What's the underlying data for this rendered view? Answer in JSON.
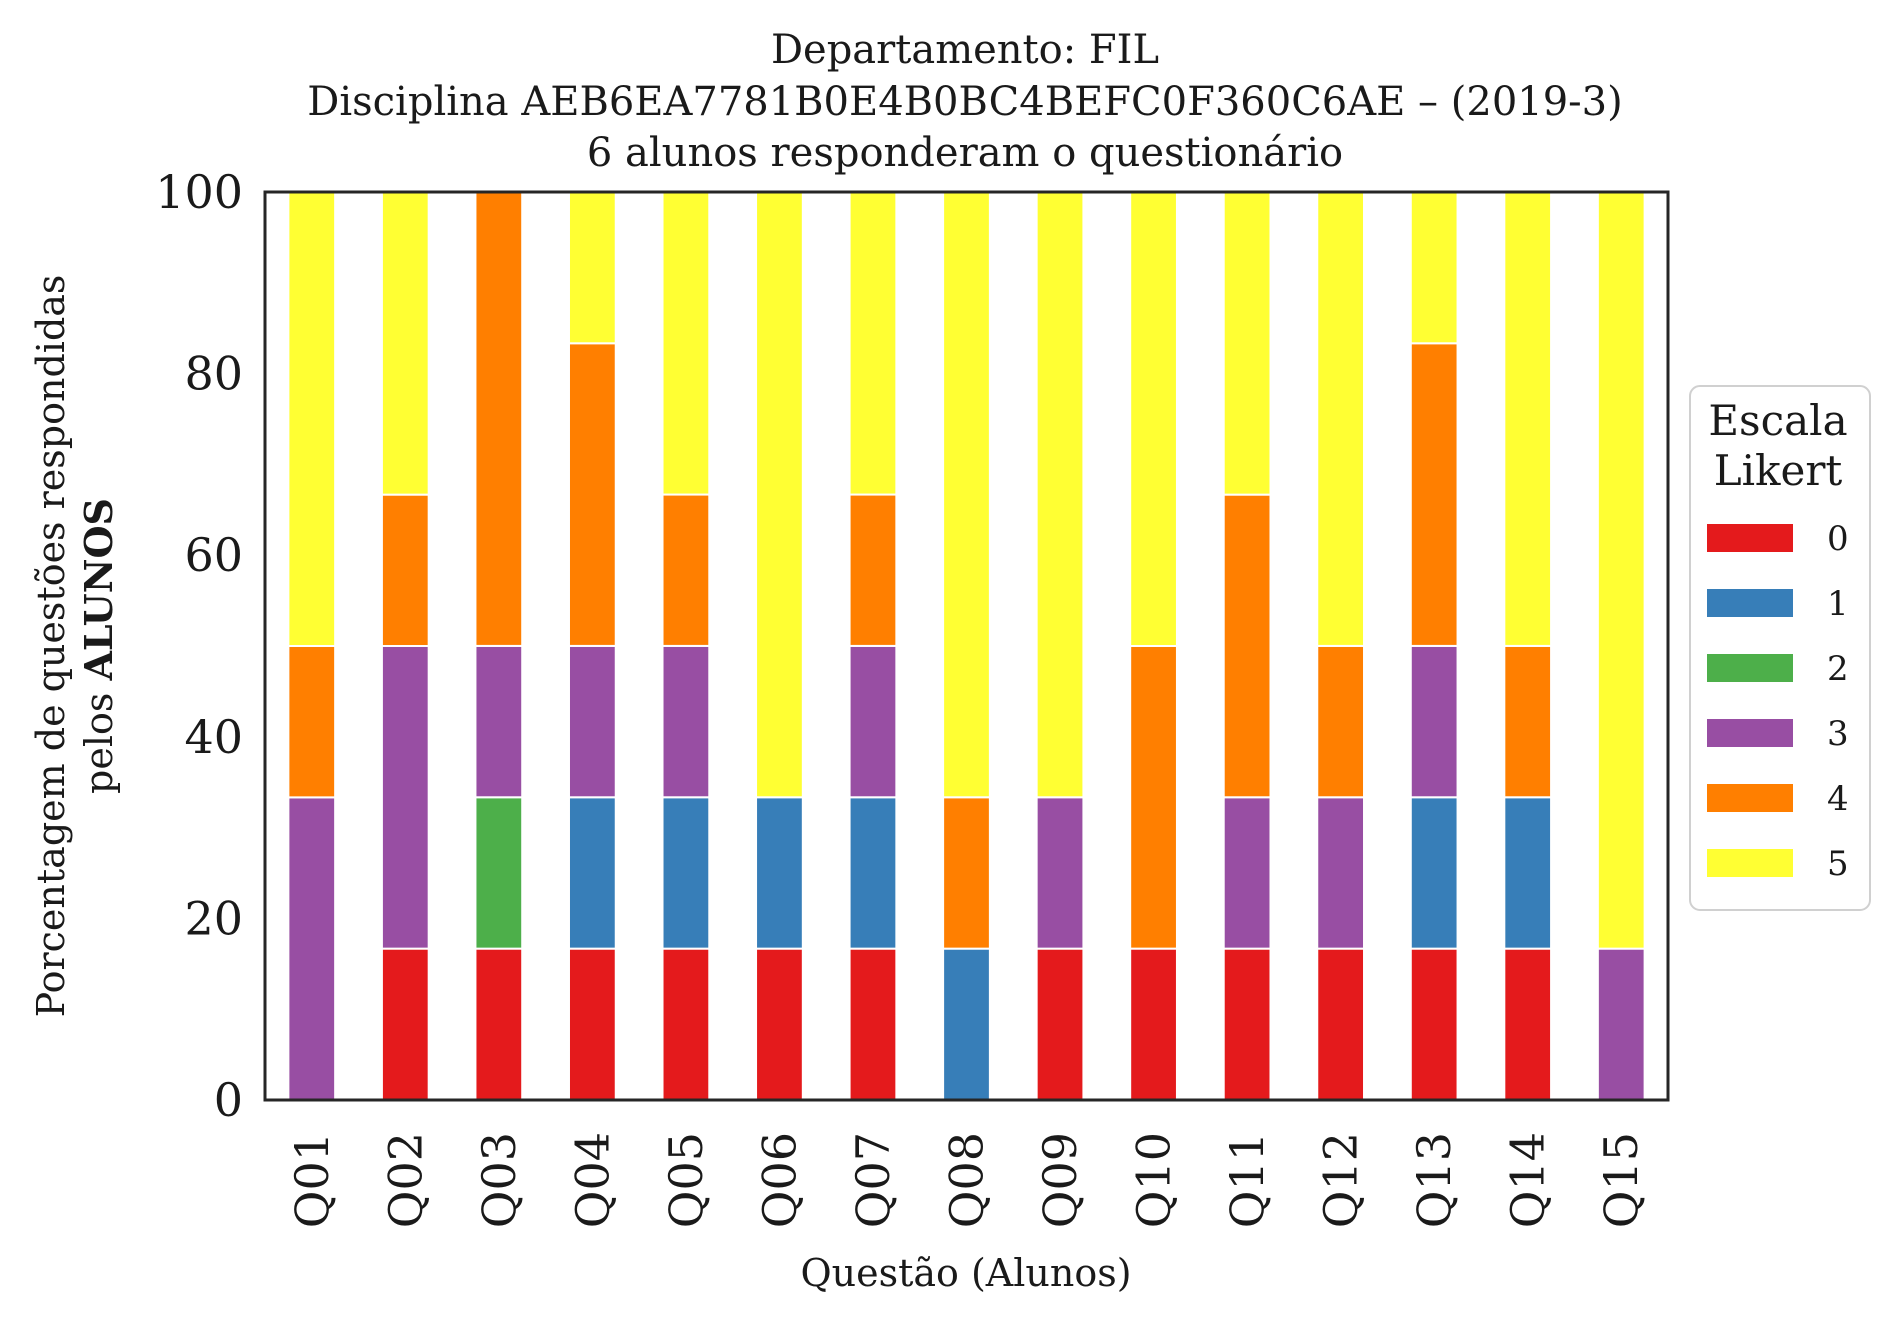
{
  "chart_data": {
    "type": "bar",
    "stacked": true,
    "title_lines": [
      "Departamento: FIL",
      "Disciplina AEB6EA7781B0E4B0BC4BEFC0F360C6AE – (2019-3)",
      "6 alunos responderam o questionário"
    ],
    "ylabel_line1": "Porcentagem de questões respondidas",
    "ylabel_line2_prefix": "pelos ",
    "ylabel_line2_bold": "ALUNOS",
    "xlabel": "Questão (Alunos)",
    "ylim": [
      0,
      100
    ],
    "yticks": [
      "0",
      "20",
      "40",
      "60",
      "80",
      "100"
    ],
    "categories": [
      "Q01",
      "Q02",
      "Q03",
      "Q04",
      "Q05",
      "Q06",
      "Q07",
      "Q08",
      "Q09",
      "Q10",
      "Q11",
      "Q12",
      "Q13",
      "Q14",
      "Q15"
    ],
    "legend": {
      "title_lines": [
        "Escala",
        "Likert"
      ],
      "placement": "right"
    },
    "series": [
      {
        "name": "0",
        "color": "#e41a1c",
        "values": [
          0,
          16.67,
          16.67,
          16.67,
          16.67,
          16.67,
          16.67,
          0,
          16.67,
          16.67,
          16.67,
          16.67,
          16.67,
          16.67,
          0
        ]
      },
      {
        "name": "1",
        "color": "#377eb8",
        "values": [
          0,
          0,
          0,
          16.67,
          16.67,
          16.67,
          16.67,
          16.67,
          0,
          0,
          0,
          0,
          16.67,
          16.67,
          0
        ]
      },
      {
        "name": "2",
        "color": "#4daf4a",
        "values": [
          0,
          0,
          16.67,
          0,
          0,
          0,
          0,
          0,
          0,
          0,
          0,
          0,
          0,
          0,
          0
        ]
      },
      {
        "name": "3",
        "color": "#984ea3",
        "values": [
          33.33,
          33.33,
          16.67,
          16.67,
          16.67,
          0,
          16.67,
          0,
          16.67,
          0,
          16.67,
          16.67,
          16.67,
          0,
          16.67
        ]
      },
      {
        "name": "4",
        "color": "#ff7f00",
        "values": [
          16.67,
          16.67,
          50,
          33.33,
          16.67,
          0,
          16.67,
          16.67,
          0,
          33.33,
          33.33,
          16.67,
          33.33,
          16.67,
          0
        ]
      },
      {
        "name": "5",
        "color": "#ffff33",
        "values": [
          50,
          33.33,
          0,
          16.67,
          33.33,
          66.67,
          33.33,
          66.67,
          66.67,
          50,
          33.33,
          50,
          16.67,
          50,
          83.33
        ]
      }
    ]
  }
}
